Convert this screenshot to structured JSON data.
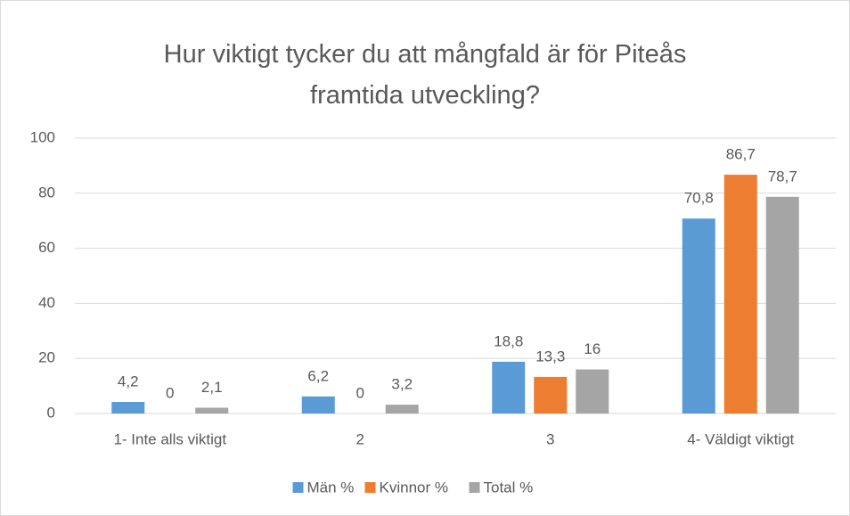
{
  "chart_data": {
    "type": "bar",
    "title": "Hur viktigt tycker du att mångfald är för Piteås framtida utveckling?",
    "categories": [
      "1- Inte alls viktigt",
      "2",
      "3",
      "4- Väldigt viktigt"
    ],
    "series": [
      {
        "name": "Män %",
        "color": "#5b9bd5",
        "values": [
          4.2,
          6.2,
          18.8,
          70.8
        ],
        "value_labels": [
          "4,2",
          "6,2",
          "18,8",
          "70,8"
        ]
      },
      {
        "name": "Kvinnor %",
        "color": "#ed7d31",
        "values": [
          0,
          0,
          13.3,
          86.7
        ],
        "value_labels": [
          "0",
          "0",
          "13,3",
          "86,7"
        ]
      },
      {
        "name": "Total %",
        "color": "#a5a5a5",
        "values": [
          2.1,
          3.2,
          16,
          78.7
        ],
        "value_labels": [
          "2,1",
          "3,2",
          "16",
          "78,7"
        ]
      }
    ],
    "ylim": [
      0,
      100
    ],
    "yticks": [
      0,
      20,
      40,
      60,
      80,
      100
    ],
    "grid": true,
    "legend": "bottom"
  }
}
